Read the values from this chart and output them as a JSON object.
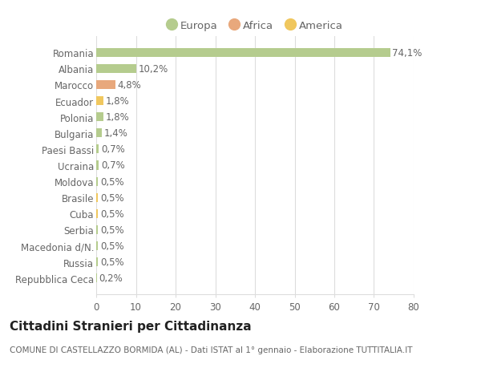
{
  "countries": [
    "Romania",
    "Albania",
    "Marocco",
    "Ecuador",
    "Polonia",
    "Bulgaria",
    "Paesi Bassi",
    "Ucraina",
    "Moldova",
    "Brasile",
    "Cuba",
    "Serbia",
    "Macedonia d/N.",
    "Russia",
    "Repubblica Ceca"
  ],
  "values": [
    74.1,
    10.2,
    4.8,
    1.8,
    1.8,
    1.4,
    0.7,
    0.7,
    0.5,
    0.5,
    0.5,
    0.5,
    0.5,
    0.5,
    0.2
  ],
  "labels": [
    "74,1%",
    "10,2%",
    "4,8%",
    "1,8%",
    "1,8%",
    "1,4%",
    "0,7%",
    "0,7%",
    "0,5%",
    "0,5%",
    "0,5%",
    "0,5%",
    "0,5%",
    "0,5%",
    "0,2%"
  ],
  "categories": [
    "Europa",
    "Africa",
    "America"
  ],
  "continent": [
    "Europa",
    "Europa",
    "Africa",
    "America",
    "Europa",
    "Europa",
    "Europa",
    "Europa",
    "Europa",
    "America",
    "America",
    "Europa",
    "Europa",
    "Europa",
    "Europa"
  ],
  "colors": {
    "Europa": "#b5cc8e",
    "Africa": "#e8a87c",
    "America": "#f0c75e"
  },
  "title": "Cittadini Stranieri per Cittadinanza",
  "subtitle": "COMUNE DI CASTELLAZZO BORMIDA (AL) - Dati ISTAT al 1° gennaio - Elaborazione TUTTITALIA.IT",
  "xlim": [
    0,
    80
  ],
  "xticks": [
    0,
    10,
    20,
    30,
    40,
    50,
    60,
    70,
    80
  ],
  "bg_color": "#ffffff",
  "grid_color": "#dddddd",
  "bar_height": 0.55,
  "label_fontsize": 8.5,
  "title_fontsize": 11,
  "subtitle_fontsize": 7.5,
  "tick_fontsize": 8.5,
  "legend_fontsize": 9.5,
  "text_color": "#666666"
}
